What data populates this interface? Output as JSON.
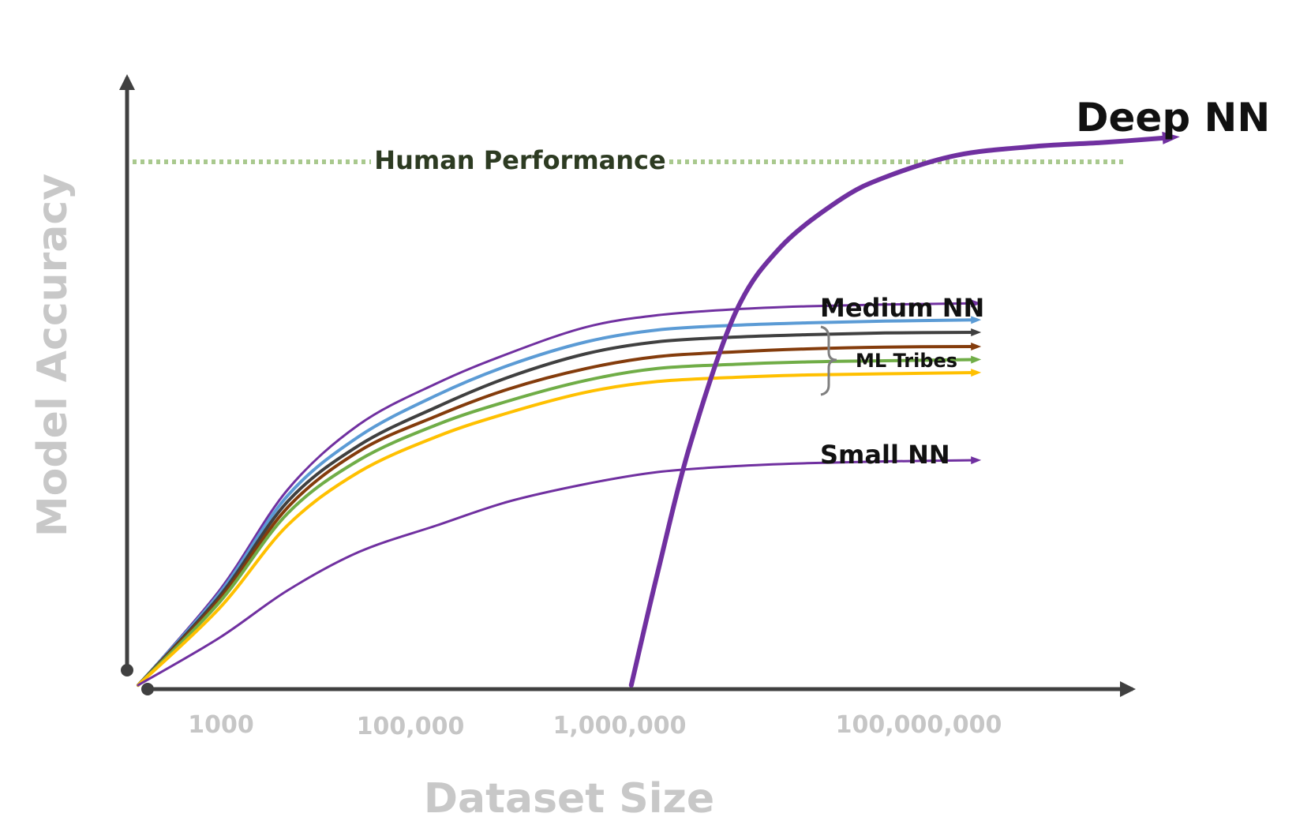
{
  "chart_data": {
    "type": "line",
    "title": "",
    "xlabel": "Dataset Size",
    "ylabel": "Model Accuracy",
    "x_scale": "log",
    "x_ticks": [
      {
        "value": 1000,
        "label": "1000"
      },
      {
        "value": 100000,
        "label": "100,000"
      },
      {
        "value": 1000000,
        "label": "1,000,000"
      },
      {
        "value": 100000000,
        "label": "100,000,000"
      }
    ],
    "y_ticks": [],
    "xlim": [
      100,
      1000000000
    ],
    "ylim": [
      0,
      100
    ],
    "reference_line": {
      "label": "Human Performance",
      "y": 85,
      "color": "#a9c98e",
      "style": "dotted"
    },
    "group_annotation": {
      "label": "ML Tribes",
      "series": [
        1,
        2,
        3,
        4,
        5
      ]
    },
    "series": [
      {
        "name": "Medium NN",
        "color": "#7030a0",
        "width": 3,
        "x": [
          100,
          350,
          1000,
          3000,
          10000,
          30000,
          100000,
          300000,
          1000000,
          3000000,
          10000000,
          40000000
        ],
        "y": [
          0,
          16,
          33,
          44,
          51,
          56,
          60.5,
          62.5,
          63.5,
          64,
          64.3,
          64.5
        ]
      },
      {
        "name": "",
        "color": "#5b9bd5",
        "width": 4,
        "x": [
          100,
          350,
          1000,
          3000,
          10000,
          30000,
          100000,
          300000,
          1000000,
          3000000,
          10000000,
          40000000
        ],
        "y": [
          0,
          15.5,
          32,
          42,
          49,
          54,
          58,
          60,
          60.8,
          61.2,
          61.5,
          61.7
        ]
      },
      {
        "name": "",
        "color": "#404040",
        "width": 4,
        "x": [
          100,
          350,
          1000,
          3000,
          10000,
          30000,
          100000,
          300000,
          1000000,
          3000000,
          10000000,
          40000000
        ],
        "y": [
          0,
          15,
          31,
          40.5,
          47,
          52,
          56,
          58,
          58.8,
          59.2,
          59.5,
          59.6
        ]
      },
      {
        "name": "",
        "color": "#843c0c",
        "width": 4,
        "x": [
          100,
          350,
          1000,
          3000,
          10000,
          30000,
          100000,
          300000,
          1000000,
          3000000,
          10000000,
          40000000
        ],
        "y": [
          0,
          14.5,
          30,
          39.5,
          45.5,
          50,
          53.5,
          55.5,
          56.3,
          56.8,
          57.1,
          57.2
        ]
      },
      {
        "name": "",
        "color": "#70ad47",
        "width": 4,
        "x": [
          100,
          350,
          1000,
          3000,
          10000,
          30000,
          100000,
          300000,
          1000000,
          3000000,
          10000000,
          40000000
        ],
        "y": [
          0,
          14,
          29,
          38,
          44,
          48,
          51.5,
          53.5,
          54.2,
          54.6,
          54.8,
          55
        ]
      },
      {
        "name": "",
        "color": "#ffc000",
        "width": 4,
        "x": [
          100,
          350,
          1000,
          3000,
          10000,
          30000,
          100000,
          300000,
          1000000,
          3000000,
          10000000,
          40000000
        ],
        "y": [
          0,
          13,
          27,
          36,
          42,
          46,
          49.5,
          51.3,
          52,
          52.4,
          52.6,
          52.8
        ]
      },
      {
        "name": "Small NN",
        "color": "#7030a0",
        "width": 3,
        "x": [
          100,
          350,
          1000,
          3000,
          10000,
          30000,
          100000,
          300000,
          1000000,
          3000000,
          10000000,
          40000000
        ],
        "y": [
          0,
          8,
          16,
          22.5,
          27,
          31,
          34,
          36,
          37,
          37.5,
          37.8,
          38
        ]
      },
      {
        "name": "Deep NN",
        "color": "#7030a0",
        "width": 6,
        "x": [
          200000,
          300000,
          500000,
          1000000,
          2000000,
          5000000,
          10000000,
          30000000,
          100000000,
          300000000,
          800000000
        ],
        "y": [
          0,
          19,
          41,
          63,
          74,
          82,
          85.8,
          89.5,
          91,
          91.7,
          92.5
        ]
      }
    ]
  }
}
